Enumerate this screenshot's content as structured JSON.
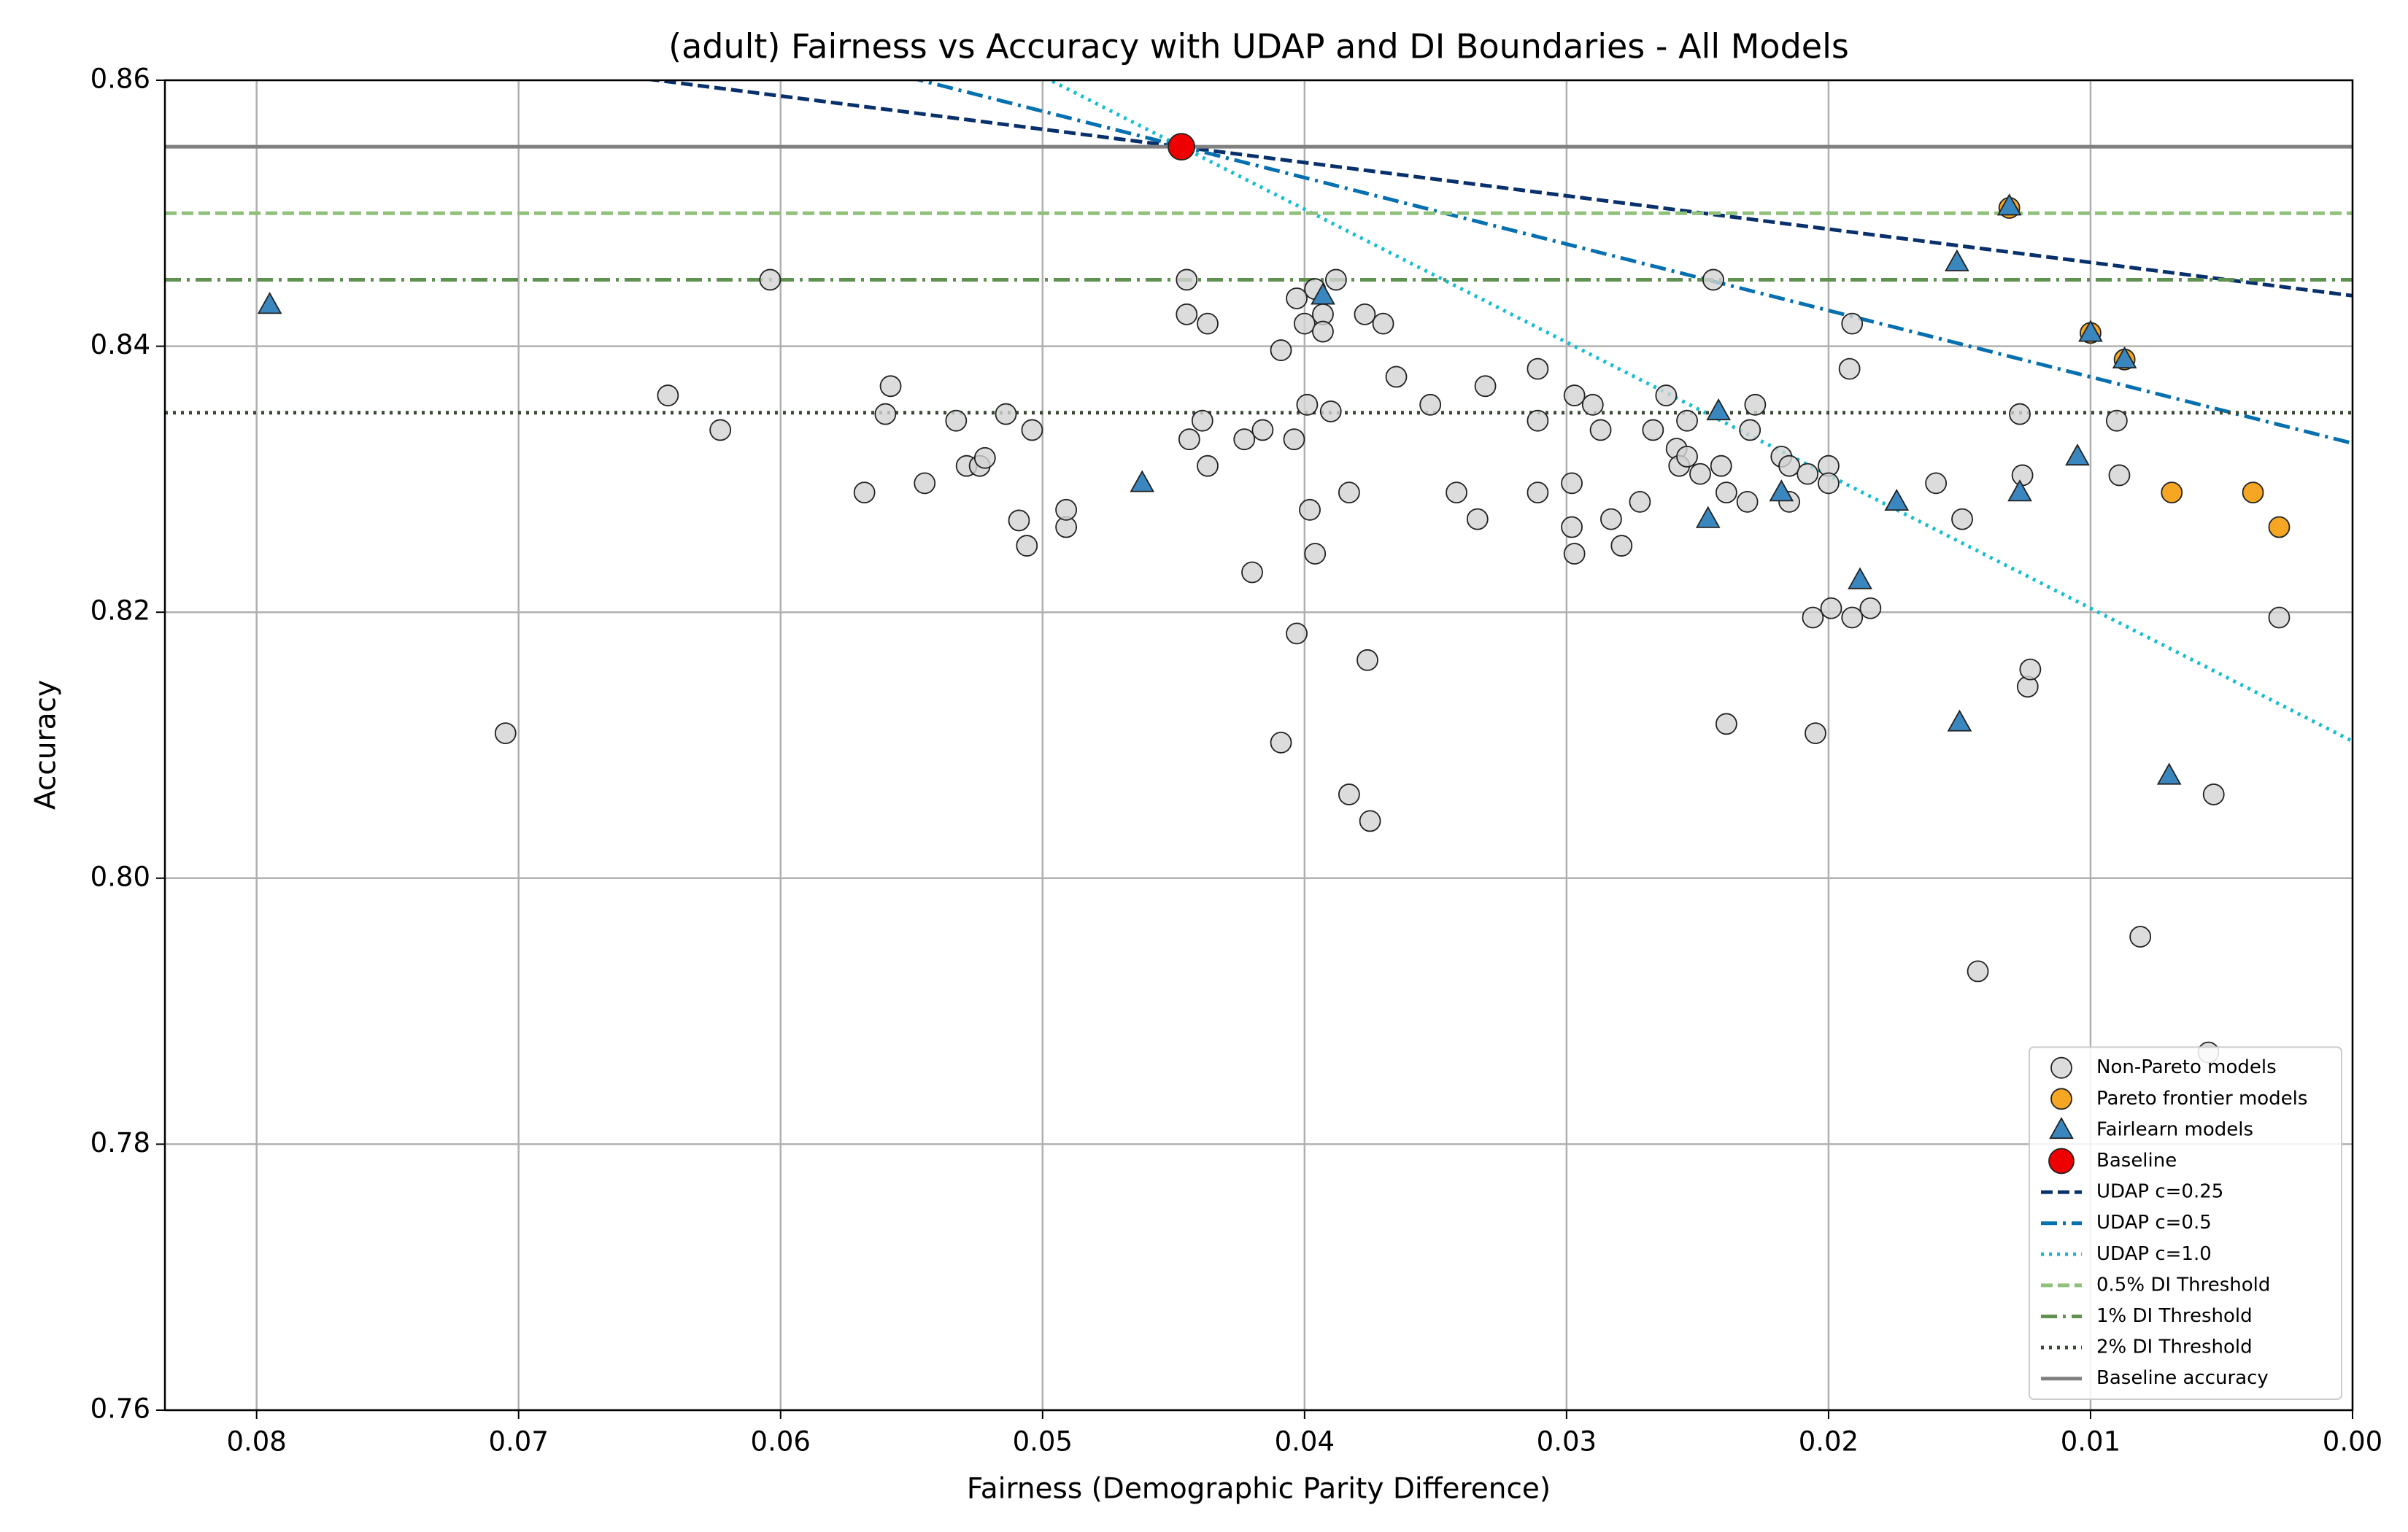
{
  "chart_data": {
    "type": "scatter",
    "title": "(adult) Fairness vs Accuracy with UDAP and DI Boundaries - All Models",
    "x_label": "Fairness (Demographic Parity Difference)",
    "y_label": "Accuracy",
    "xlim": [
      0.0835,
      0
    ],
    "ylim": [
      0.76,
      0.86
    ],
    "xticks": [
      0.08,
      0.07,
      0.06,
      0.05,
      0.04,
      0.03,
      0.02,
      0.01,
      {
        "value": 0,
        "label": "0.00"
      }
    ],
    "yticks": [
      0.76,
      0.78,
      {
        "value": 0.8,
        "label": "0.80"
      },
      0.82,
      0.84,
      0.86
    ],
    "grid": true,
    "legend": "lower right",
    "series": [
      {
        "name": "Non-Pareto models",
        "kind": "points",
        "marker": "circle",
        "color": "#d3d3d3",
        "x": [
          0.0705,
          0.0643,
          0.0623,
          0.0604,
          0.0568,
          0.056,
          0.0558,
          0.0545,
          0.0533,
          0.0529,
          0.0524,
          0.0522,
          0.0514,
          0.0509,
          0.0506,
          0.0504,
          0.0491,
          0.0491,
          0.0445,
          0.0445,
          0.0444,
          0.0437,
          0.0439,
          0.0437,
          0.0423,
          0.042,
          0.0416,
          0.0409,
          0.0409,
          0.0404,
          0.0403,
          0.0403,
          0.04,
          0.0399,
          0.0398,
          0.0396,
          0.0396,
          0.0393,
          0.0393,
          0.039,
          0.0388,
          0.0383,
          0.0383,
          0.0377,
          0.0376,
          0.0375,
          0.037,
          0.0365,
          0.0352,
          0.0342,
          0.0334,
          0.0331,
          0.0311,
          0.0311,
          0.0311,
          0.0298,
          0.0298,
          0.0297,
          0.0297,
          0.029,
          0.0287,
          0.0283,
          0.0279,
          0.0272,
          0.0267,
          0.0262,
          0.0258,
          0.0257,
          0.0254,
          0.0254,
          0.0249,
          0.0244,
          0.0241,
          0.0239,
          0.0239,
          0.0231,
          0.023,
          0.0228,
          0.0218,
          0.0215,
          0.0215,
          0.0208,
          0.0206,
          0.0205,
          0.02,
          0.02,
          0.0199,
          0.0192,
          0.0191,
          0.0191,
          0.0184,
          0.0159,
          0.0149,
          0.0143,
          0.0127,
          0.0126,
          0.0124,
          0.0123,
          0.009,
          0.0089,
          0.0081,
          0.0055,
          0.0053,
          0.0028
        ],
        "values": [
          0.8109,
          0.8363,
          0.8337,
          0.845,
          0.829,
          0.8349,
          0.837,
          0.8297,
          0.8344,
          0.831,
          0.831,
          0.8316,
          0.8349,
          0.8269,
          0.825,
          0.8337,
          0.8264,
          0.8277,
          0.845,
          0.8424,
          0.833,
          0.8417,
          0.8344,
          0.831,
          0.833,
          0.823,
          0.8337,
          0.8397,
          0.8102,
          0.833,
          0.8184,
          0.8436,
          0.8417,
          0.8356,
          0.8277,
          0.8244,
          0.8443,
          0.8424,
          0.8411,
          0.8351,
          0.845,
          0.829,
          0.8063,
          0.8424,
          0.8164,
          0.8043,
          0.8417,
          0.8377,
          0.8356,
          0.829,
          0.827,
          0.837,
          0.8383,
          0.8344,
          0.829,
          0.8297,
          0.8264,
          0.8244,
          0.8363,
          0.8356,
          0.8337,
          0.827,
          0.825,
          0.8283,
          0.8337,
          0.8363,
          0.8323,
          0.831,
          0.8317,
          0.8344,
          0.8304,
          0.845,
          0.831,
          0.829,
          0.8116,
          0.8283,
          0.8337,
          0.8356,
          0.8317,
          0.831,
          0.8283,
          0.8304,
          0.8196,
          0.8109,
          0.831,
          0.8297,
          0.8203,
          0.8383,
          0.8417,
          0.8196,
          0.8203,
          0.8297,
          0.827,
          0.793,
          0.8349,
          0.8303,
          0.8144,
          0.8157,
          0.8344,
          0.8303,
          0.7956,
          0.7869,
          0.8063,
          0.8196
        ]
      },
      {
        "name": "Pareto frontier models",
        "kind": "points",
        "marker": "circle",
        "color": "#f5a623",
        "x": [
          0.0131,
          0.01,
          0.0087,
          0.0069,
          0.0038,
          0.0028
        ],
        "values": [
          0.8504,
          0.841,
          0.839,
          0.829,
          0.829,
          0.8264
        ]
      },
      {
        "name": "Fairlearn models",
        "kind": "points",
        "marker": "triangle",
        "color": "#3a87c0",
        "x": [
          0.0795,
          0.0462,
          0.0393,
          0.0242,
          0.0246,
          0.0218,
          0.0188,
          0.0174,
          0.0151,
          0.015,
          0.0131,
          0.0127,
          0.0105,
          0.01,
          0.0087,
          0.007
        ],
        "values": [
          0.8431,
          0.8297,
          0.8438,
          0.8351,
          0.827,
          0.829,
          0.8224,
          0.8283,
          0.8463,
          0.8117,
          0.8505,
          0.829,
          0.8317,
          0.841,
          0.839,
          0.8077
        ]
      },
      {
        "name": "Baseline",
        "kind": "points",
        "marker": "circle",
        "color": "#ee0000",
        "size": "large",
        "x": [
          0.0447
        ],
        "values": [
          0.855
        ]
      },
      {
        "name": "UDAP c=0.25",
        "kind": "line",
        "linestyle": "dashed",
        "color": "#08306b",
        "x": [
          0.0835,
          0
        ],
        "values": [
          0.8647,
          0.8438
        ]
      },
      {
        "name": "UDAP c=0.5",
        "kind": "line",
        "linestyle": "dashdot",
        "color": "#0570b0",
        "x": [
          0.0835,
          0
        ],
        "values": [
          0.8744,
          0.8327
        ]
      },
      {
        "name": "UDAP c=1.0",
        "kind": "line",
        "linestyle": "dotted",
        "color": "#17becf",
        "x": [
          0.0835,
          0
        ],
        "values": [
          0.8938,
          0.8103
        ]
      },
      {
        "name": "0.5% DI Threshold",
        "kind": "line",
        "linestyle": "dashed",
        "color": "#8fc17a",
        "x": [
          0.0835,
          0
        ],
        "values": [
          0.85,
          0.85
        ]
      },
      {
        "name": "1% DI Threshold",
        "kind": "line",
        "linestyle": "dashdot",
        "color": "#5f9150",
        "x": [
          0.0835,
          0
        ],
        "values": [
          0.845,
          0.845
        ]
      },
      {
        "name": "2% DI Threshold",
        "kind": "line",
        "linestyle": "dotted",
        "color": "#3b4a34",
        "x": [
          0.0835,
          0
        ],
        "values": [
          0.835,
          0.835
        ]
      },
      {
        "name": "Baseline accuracy",
        "kind": "line",
        "linestyle": "solid",
        "color": "#808080",
        "x": [
          0.0835,
          0
        ],
        "values": [
          0.855,
          0.855
        ]
      }
    ]
  }
}
